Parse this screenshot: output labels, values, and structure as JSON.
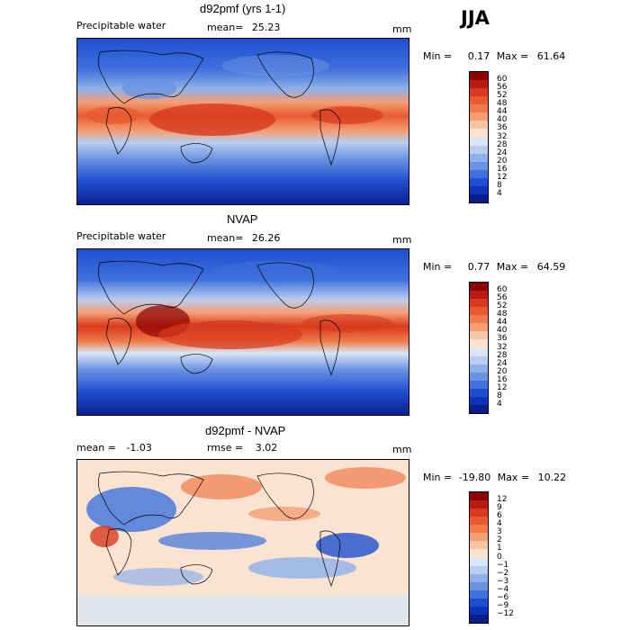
{
  "season": "JJA",
  "panels": [
    {
      "id": "model",
      "title": "d92pmf (yrs 1-1)",
      "left_label": "Precipitable water",
      "center_label": "mean=",
      "center_value": "25.23",
      "unit": "mm",
      "min_label": "Min =",
      "min_value": "0.17",
      "max_label": "Max =",
      "max_value": "61.64",
      "colorbar_ticks": [
        "60",
        "56",
        "52",
        "48",
        "44",
        "40",
        "36",
        "32",
        "28",
        "24",
        "20",
        "16",
        "12",
        "8",
        "4"
      ],
      "colorbar_colors": [
        "#8b0000",
        "#b71c10",
        "#d73a1e",
        "#e85a30",
        "#f07b4a",
        "#f59e74",
        "#f8c3a3",
        "#fbe3d2",
        "#d9e6f7",
        "#b9cdf1",
        "#8fb0ea",
        "#6a92e3",
        "#3f70dc",
        "#1f4fd0",
        "#0d33b8",
        "#0a1d8c"
      ]
    },
    {
      "id": "obs",
      "title": "NVAP",
      "left_label": "Precipitable water",
      "center_label": "mean=",
      "center_value": "26.26",
      "unit": "mm",
      "min_label": "Min =",
      "min_value": "0.77",
      "max_label": "Max =",
      "max_value": "64.59",
      "colorbar_ticks": [
        "60",
        "56",
        "52",
        "48",
        "44",
        "40",
        "36",
        "32",
        "28",
        "24",
        "20",
        "16",
        "12",
        "8",
        "4"
      ],
      "colorbar_colors": [
        "#8b0000",
        "#b71c10",
        "#d73a1e",
        "#e85a30",
        "#f07b4a",
        "#f59e74",
        "#f8c3a3",
        "#fbe3d2",
        "#d9e6f7",
        "#b9cdf1",
        "#8fb0ea",
        "#6a92e3",
        "#3f70dc",
        "#1f4fd0",
        "#0d33b8",
        "#0a1d8c"
      ]
    },
    {
      "id": "diff",
      "title": "d92pmf - NVAP",
      "left_label": "mean =",
      "left_value": "-1.03",
      "center_label": "rmse =",
      "center_value": "3.02",
      "unit": "mm",
      "min_label": "Min =",
      "min_value": "-19.80",
      "max_label": "Max =",
      "max_value": "10.22",
      "colorbar_ticks": [
        "12",
        "9",
        "6",
        "4",
        "3",
        "2",
        "1",
        "0",
        "−1",
        "−2",
        "−3",
        "−4",
        "−6",
        "−9",
        "−12"
      ],
      "colorbar_colors": [
        "#8b0000",
        "#b71c10",
        "#d73a1e",
        "#e85a30",
        "#f07b4a",
        "#f59e74",
        "#f8c3a3",
        "#fbe3d2",
        "#d9e6f7",
        "#b9cdf1",
        "#8fb0ea",
        "#6a92e3",
        "#3f70dc",
        "#1f4fd0",
        "#0d33b8",
        "#0a1d8c"
      ]
    }
  ]
}
